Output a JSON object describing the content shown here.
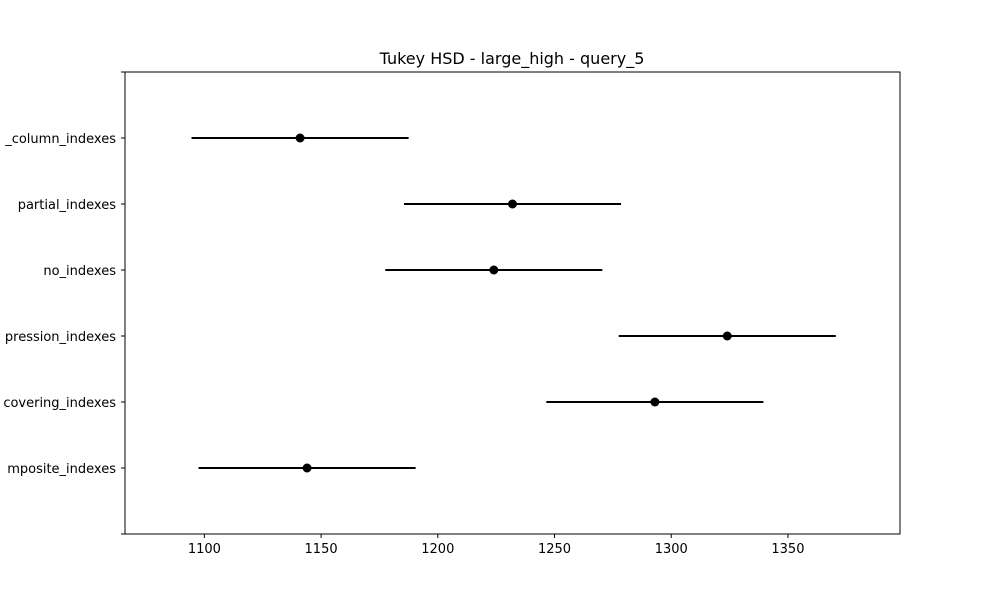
{
  "chart_data": {
    "type": "scatter",
    "title": "Tukey HSD - large_high - query_5",
    "xlabel": "",
    "ylabel": "",
    "xlim": [
      1066,
      1398
    ],
    "xticks": [
      1100,
      1150,
      1200,
      1250,
      1300,
      1350
    ],
    "grid": false,
    "categories": [
      "multi_column_indexes",
      "partial_indexes",
      "no_indexes",
      "expression_indexes",
      "covering_indexes",
      "composite_indexes"
    ],
    "visible_labels": [
      "_column_indexes",
      "partial_indexes",
      "no_indexes",
      "pression_indexes",
      "covering_indexes",
      "mposite_indexes"
    ],
    "means": [
      1141,
      1232,
      1224,
      1324,
      1293,
      1144
    ],
    "lower": [
      1094.5,
      1185.5,
      1177.5,
      1277.5,
      1246.5,
      1097.5
    ],
    "upper": [
      1187.5,
      1278.5,
      1270.5,
      1370.5,
      1339.5,
      1190.5
    ],
    "color": "#000000"
  }
}
